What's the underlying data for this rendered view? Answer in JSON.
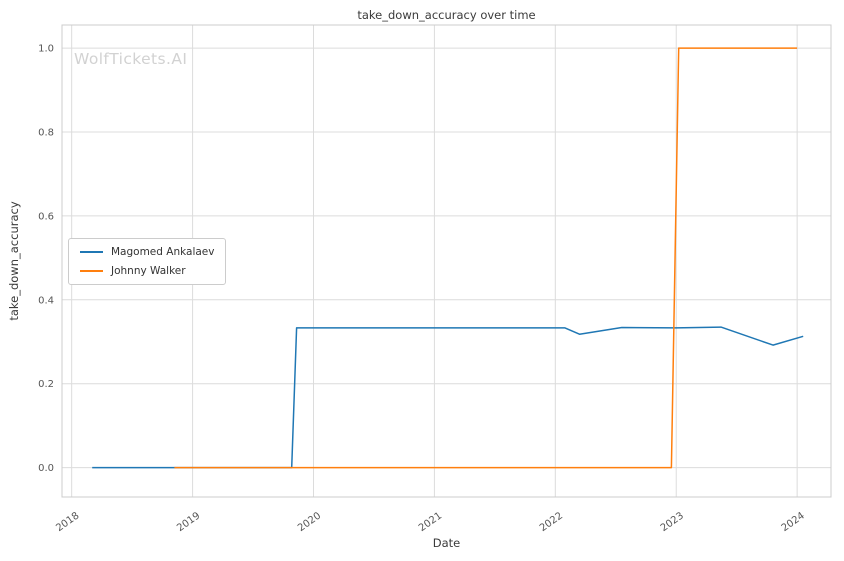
{
  "watermark": "WolfTickets.AI",
  "chart_data": {
    "type": "line",
    "title": "take_down_accuracy over time",
    "xlabel": "Date",
    "ylabel": "take_down_accuracy",
    "xlim": [
      2017.92,
      2024.28
    ],
    "ylim": [
      -0.07,
      1.055
    ],
    "grid": true,
    "legend_position": "center-left",
    "colors": {
      "grid": "#dcdcdc",
      "spine": "#cccccc",
      "tick_text": "#555555"
    },
    "x_ticks": [
      {
        "value": 2018,
        "label": "2018"
      },
      {
        "value": 2019,
        "label": "2019"
      },
      {
        "value": 2020,
        "label": "2020"
      },
      {
        "value": 2021,
        "label": "2021"
      },
      {
        "value": 2022,
        "label": "2022"
      },
      {
        "value": 2023,
        "label": "2023"
      },
      {
        "value": 2024,
        "label": "2024"
      }
    ],
    "y_ticks": [
      {
        "value": 0.0,
        "label": "0.0"
      },
      {
        "value": 0.2,
        "label": "0.2"
      },
      {
        "value": 0.4,
        "label": "0.4"
      },
      {
        "value": 0.6,
        "label": "0.6"
      },
      {
        "value": 0.8,
        "label": "0.8"
      },
      {
        "value": 1.0,
        "label": "1.0"
      }
    ],
    "series": [
      {
        "name": "Magomed Ankalaev",
        "color": "#1f77b4",
        "x": [
          2018.17,
          2018.5,
          2018.85,
          2019.3,
          2019.82,
          2019.86,
          2020.4,
          2021.0,
          2021.6,
          2022.08,
          2022.2,
          2022.55,
          2023.0,
          2023.37,
          2023.8,
          2024.05
        ],
        "y": [
          0.0,
          0.0,
          0.0,
          0.0,
          0.0,
          0.333,
          0.333,
          0.333,
          0.333,
          0.333,
          0.318,
          0.334,
          0.333,
          0.335,
          0.292,
          0.313
        ]
      },
      {
        "name": "Johnny Walker",
        "color": "#ff7f0e",
        "x": [
          2018.85,
          2019.5,
          2020.2,
          2021.0,
          2021.8,
          2022.5,
          2022.96,
          2023.02,
          2023.5,
          2024.0
        ],
        "y": [
          0.0,
          0.0,
          0.0,
          0.0,
          0.0,
          0.0,
          0.0,
          1.0,
          1.0,
          1.0
        ]
      }
    ]
  }
}
